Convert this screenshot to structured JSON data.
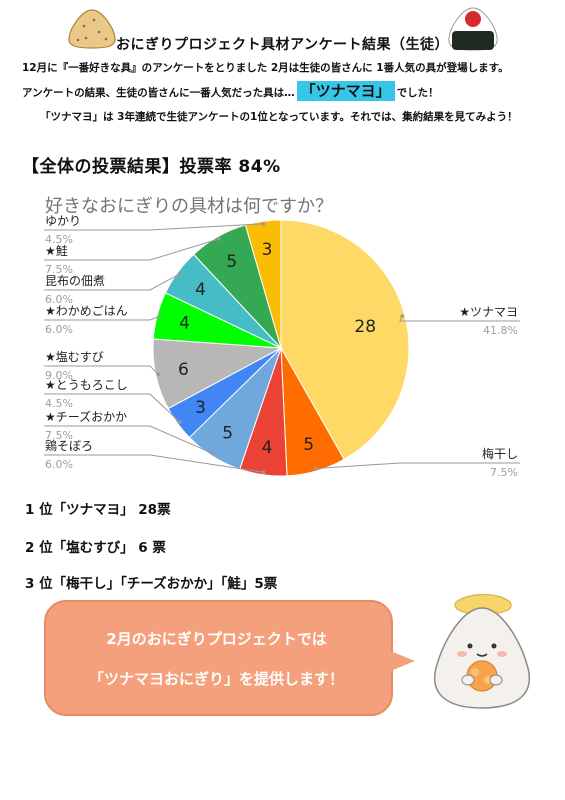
{
  "header": {
    "title": "おにぎりプロジェクト具材アンケート結果（生徒）",
    "line1": "12月に『一番好きな具』のアンケートをとりました 2月は生徒の皆さんに 1番人気の具が登場します。",
    "line2_prefix": "アンケートの結果、生徒の皆さんに一番人気だった具は…",
    "line2_highlight": "「ツナマヨ」",
    "line2_suffix": "でした！",
    "line3": "「ツナマヨ」は 3年連続で生徒アンケートの1位となっています。それでは、集約結果を見てみよう！"
  },
  "section": {
    "heading": "【全体の投票結果】投票率 84%"
  },
  "chart_data": {
    "type": "pie",
    "title": "好きなおにぎりの具材は何ですか？",
    "slices": [
      {
        "label": "★ツナマヨ",
        "value": 28,
        "percent": "41.8%",
        "color": "#ffd966"
      },
      {
        "label": "梅干し",
        "value": 5,
        "percent": "7.5%",
        "color": "#ff6d01"
      },
      {
        "label": "鶏そぼろ",
        "value": 4,
        "percent": "6.0%",
        "color": "#ea4335"
      },
      {
        "label": "★チーズおかか",
        "value": 5,
        "percent": "7.5%",
        "color": "#6fa8dc"
      },
      {
        "label": "★とうもろこし",
        "value": 3,
        "percent": "4.5%",
        "color": "#4285f4"
      },
      {
        "label": "★塩むすび",
        "value": 6,
        "percent": "9.0%",
        "color": "#b7b7b7"
      },
      {
        "label": "★わかめごはん",
        "value": 4,
        "percent": "6.0%",
        "color": "#00ff00"
      },
      {
        "label": "昆布の佃煮",
        "value": 4,
        "percent": "6.0%",
        "color": "#46bdc6"
      },
      {
        "label": "★鮭",
        "value": 5,
        "percent": "7.5%",
        "color": "#34a853"
      },
      {
        "label": "ゆかり",
        "value": 3,
        "percent": "4.5%",
        "color": "#fbbc04"
      }
    ]
  },
  "ranking": [
    "1 位「ツナマヨ」 28票",
    "2 位「塩むすび」 6 票",
    "3 位「梅干し」「チーズおかか」「鮭」5票"
  ],
  "bubble": {
    "line1": "2月のおにぎりプロジェクトでは",
    "line2": "「ツナマヨおにぎり」を提供します！"
  }
}
